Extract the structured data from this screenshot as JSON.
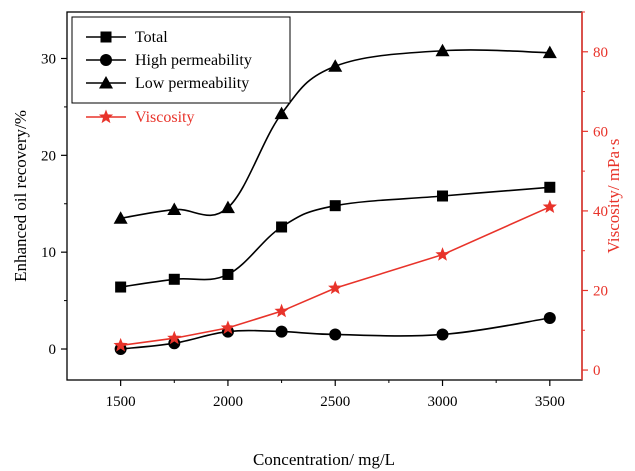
{
  "chart_data": {
    "type": "line",
    "xlabel": "Concentration/ mg/L",
    "ylabel_left": "Enhanced oil recovery/%",
    "ylabel_right": "Viscosity/ mPa·s",
    "x_ticks": [
      1500,
      2000,
      2500,
      3000,
      3500
    ],
    "y_left_ticks": [
      0,
      10,
      20,
      30
    ],
    "y_right_ticks": [
      0,
      20,
      40,
      60,
      80
    ],
    "xlim": [
      1250,
      3650
    ],
    "ylim_left": [
      -3.2,
      34.8
    ],
    "ylim_right": [
      -2.5,
      90
    ],
    "x": [
      1500,
      1750,
      2000,
      2250,
      2500,
      3000,
      3500
    ],
    "series": [
      {
        "name": "Total",
        "axis": "left",
        "marker": "square",
        "color": "#000000",
        "smooth": true,
        "values": [
          6.4,
          7.2,
          7.7,
          12.6,
          14.8,
          15.8,
          16.7
        ]
      },
      {
        "name": "High permeability",
        "axis": "left",
        "marker": "circle",
        "color": "#000000",
        "smooth": true,
        "values": [
          0.0,
          0.6,
          1.8,
          1.8,
          1.5,
          1.5,
          3.2
        ]
      },
      {
        "name": "Low permeability",
        "axis": "left",
        "marker": "triangle",
        "color": "#000000",
        "smooth": true,
        "values": [
          13.5,
          14.4,
          14.6,
          24.3,
          29.2,
          30.8,
          30.6
        ]
      },
      {
        "name": "Viscosity",
        "axis": "right",
        "marker": "star",
        "color": "#e8332a",
        "smooth": false,
        "values": [
          6.2,
          8.0,
          10.6,
          14.8,
          20.6,
          29.0,
          41.0
        ]
      }
    ],
    "legend": "top-left",
    "grid": false
  }
}
